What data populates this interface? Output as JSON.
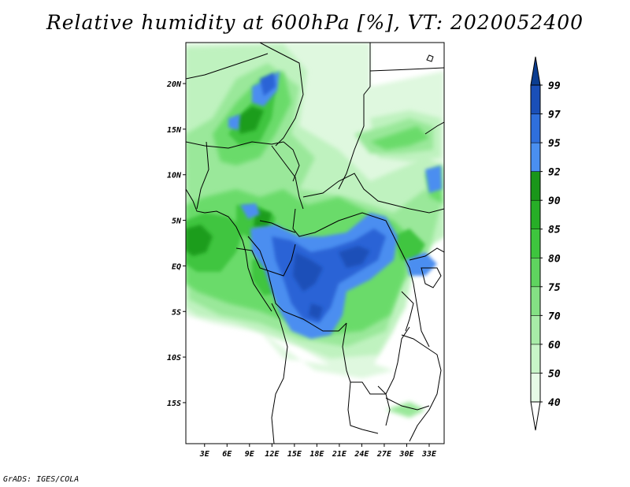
{
  "title": "Relative humidity at 600hPa [%], VT: 2020052400",
  "credit": "GrADS: IGES/COLA",
  "map": {
    "lat_labels": [
      "20N",
      "15N",
      "10N",
      "5N",
      "EQ",
      "5S",
      "10S",
      "15S"
    ],
    "lon_labels": [
      "3E",
      "6E",
      "9E",
      "12E",
      "15E",
      "18E",
      "21E",
      "24E",
      "27E",
      "30E",
      "33E"
    ]
  },
  "colorbar": {
    "labels": [
      "40",
      "50",
      "60",
      "70",
      "75",
      "80",
      "85",
      "90",
      "92",
      "95",
      "97",
      "99"
    ],
    "colors": [
      "#ffffff",
      "#e6fbe6",
      "#c8f5c8",
      "#a8eca8",
      "#84e084",
      "#5fd45f",
      "#3ec53e",
      "#27ae27",
      "#1a961a",
      "#4a8ff0",
      "#2f6fdc",
      "#1a4fb8",
      "#0b3d91"
    ]
  },
  "chart_data": {
    "type": "heatmap",
    "title": "Relative humidity at 600hPa [%], VT: 2020052400",
    "variable": "Relative humidity",
    "units": "%",
    "level": "600hPa",
    "valid_time": "2020052400",
    "x_ticks": [
      "3E",
      "6E",
      "9E",
      "12E",
      "15E",
      "18E",
      "21E",
      "24E",
      "27E",
      "30E",
      "33E"
    ],
    "y_ticks": [
      "20N",
      "15N",
      "10N",
      "5N",
      "EQ",
      "5S",
      "10S",
      "15S"
    ],
    "xlim": [
      0.5,
      35
    ],
    "ylim": [
      -19.5,
      24.5
    ],
    "contour_levels": [
      40,
      50,
      60,
      70,
      75,
      80,
      85,
      90,
      92,
      95,
      97,
      99
    ]
  }
}
